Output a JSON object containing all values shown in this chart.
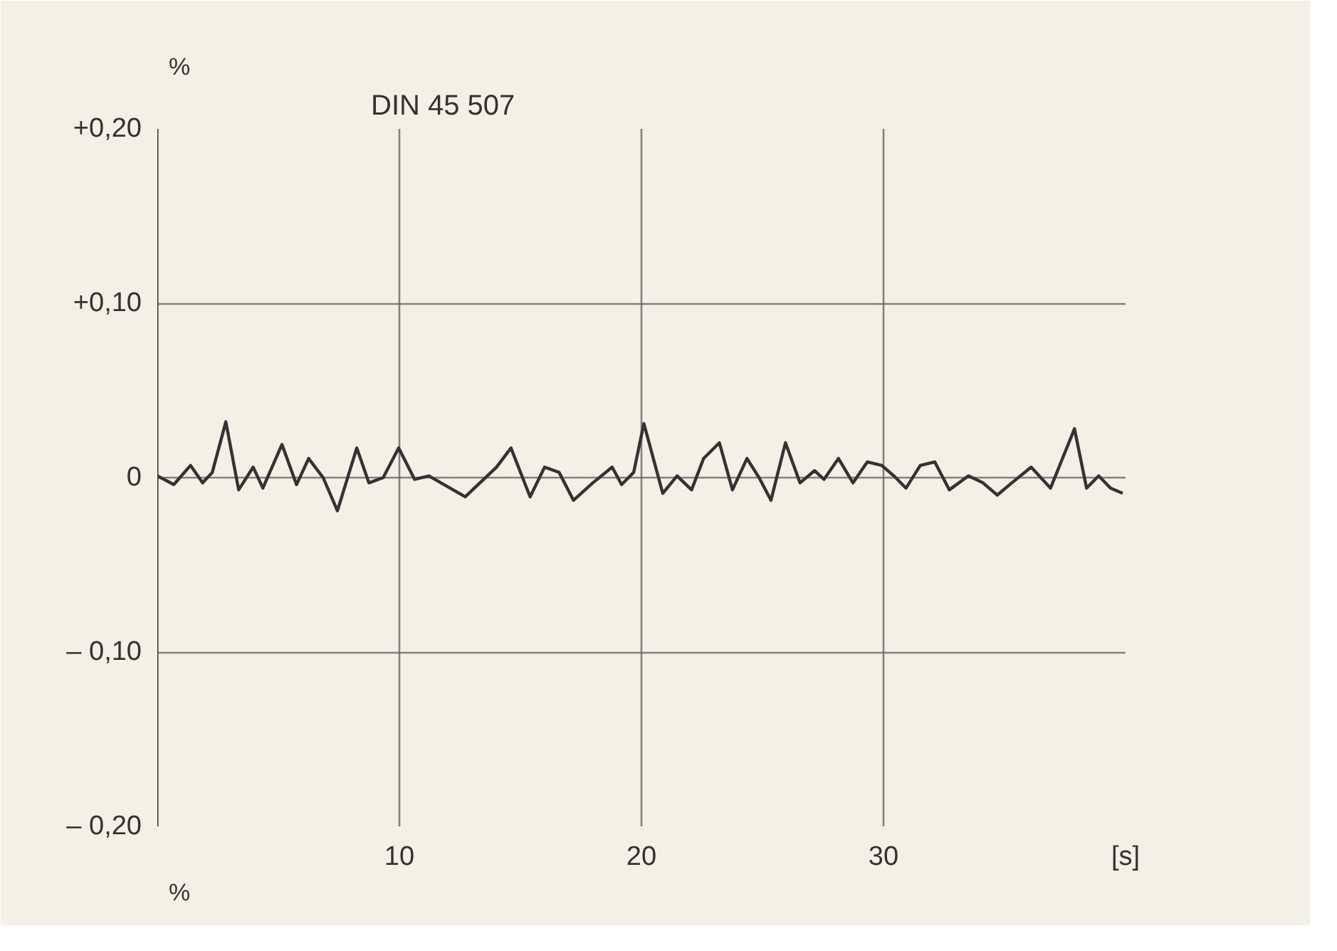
{
  "chart_data": {
    "type": "line",
    "title": "DIN 45 507",
    "ylabel": "%",
    "annotations": [
      "%"
    ],
    "xlim": [
      0,
      40
    ],
    "xticks": [
      10,
      20,
      30,
      {
        "value": 40,
        "label": "[s]"
      }
    ],
    "ylim": [
      -0.2,
      0.2
    ],
    "yticks": [
      {
        "value": 0.2,
        "label": "+0,20"
      },
      {
        "value": 0.1,
        "label": "+0,10"
      },
      0,
      {
        "value": -0.1,
        "label": "– 0,10"
      },
      {
        "value": -0.2,
        "label": "– 0,20"
      }
    ],
    "grid": true,
    "line_style": "solid",
    "series": [
      {
        "color": "#333333",
        "x": [
          0,
          0.68,
          1.37,
          1.87,
          2.27,
          2.83,
          3.36,
          3.96,
          4.36,
          5.15,
          5.75,
          6.25,
          6.85,
          7.44,
          7.84,
          8.24,
          8.74,
          9.33,
          9.97,
          10.63,
          11.22,
          11.72,
          12.72,
          14.01,
          14.61,
          15.4,
          16.0,
          16.6,
          17.19,
          17.99,
          18.79,
          19.18,
          19.68,
          20.1,
          20.88,
          21.47,
          22.07,
          22.57,
          23.22,
          23.76,
          24.36,
          24.86,
          25.35,
          25.95,
          26.55,
          27.15,
          27.54,
          28.14,
          28.74,
          29.33,
          29.93,
          30.43,
          30.93,
          31.52,
          32.12,
          32.72,
          33.51,
          34.11,
          34.7,
          35.3,
          36.1,
          36.9,
          37.89,
          38.39,
          38.89,
          39.38,
          39.88
        ],
        "values": [
          0.001,
          -0.004,
          0.007,
          -0.003,
          0.003,
          0.032,
          -0.007,
          0.006,
          -0.006,
          0.019,
          -0.004,
          0.011,
          0,
          -0.019,
          -0.001,
          0.017,
          -0.003,
          0,
          0.017,
          -0.001,
          0.001,
          -0.003,
          -0.011,
          0.006,
          0.017,
          -0.011,
          0.006,
          0.003,
          -0.013,
          -0.003,
          0.006,
          -0.004,
          0.003,
          0.031,
          -0.009,
          0.001,
          -0.007,
          0.011,
          0.02,
          -0.007,
          0.011,
          0,
          -0.013,
          0.02,
          -0.003,
          0.004,
          -0.001,
          0.011,
          -0.003,
          0.009,
          0.007,
          0.001,
          -0.006,
          0.007,
          0.009,
          -0.007,
          0.001,
          -0.003,
          -0.01,
          -0.003,
          0.006,
          -0.006,
          0.028,
          -0.006,
          0.001,
          -0.006,
          -0.009
        ]
      }
    ]
  }
}
